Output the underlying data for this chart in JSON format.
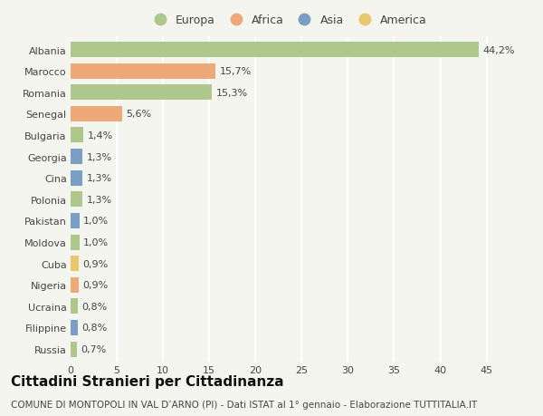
{
  "countries": [
    "Albania",
    "Marocco",
    "Romania",
    "Senegal",
    "Bulgaria",
    "Georgia",
    "Cina",
    "Polonia",
    "Pakistan",
    "Moldova",
    "Cuba",
    "Nigeria",
    "Ucraina",
    "Filippine",
    "Russia"
  ],
  "values": [
    44.2,
    15.7,
    15.3,
    5.6,
    1.4,
    1.3,
    1.3,
    1.3,
    1.0,
    1.0,
    0.9,
    0.9,
    0.8,
    0.8,
    0.7
  ],
  "labels": [
    "44,2%",
    "15,7%",
    "15,3%",
    "5,6%",
    "1,4%",
    "1,3%",
    "1,3%",
    "1,3%",
    "1,0%",
    "1,0%",
    "0,9%",
    "0,9%",
    "0,8%",
    "0,8%",
    "0,7%"
  ],
  "continents": [
    "Europa",
    "Africa",
    "Europa",
    "Africa",
    "Europa",
    "Asia",
    "Asia",
    "Europa",
    "Asia",
    "Europa",
    "America",
    "Africa",
    "Europa",
    "Asia",
    "Europa"
  ],
  "continent_colors": {
    "Europa": "#adc88a",
    "Africa": "#edaa78",
    "Asia": "#7a9fc4",
    "America": "#e8c86e"
  },
  "legend_order": [
    "Europa",
    "Africa",
    "Asia",
    "America"
  ],
  "title": "Cittadini Stranieri per Cittadinanza",
  "subtitle": "COMUNE DI MONTOPOLI IN VAL D’ARNO (PI) - Dati ISTAT al 1° gennaio - Elaborazione TUTTITALIA.IT",
  "xlim": [
    0,
    47
  ],
  "xticks": [
    0,
    5,
    10,
    15,
    20,
    25,
    30,
    35,
    40,
    45
  ],
  "background_color": "#f5f5f0",
  "grid_color": "#ffffff",
  "bar_height": 0.72,
  "title_fontsize": 11,
  "subtitle_fontsize": 7.5,
  "label_fontsize": 8,
  "tick_fontsize": 8,
  "legend_fontsize": 9,
  "text_color": "#444444"
}
